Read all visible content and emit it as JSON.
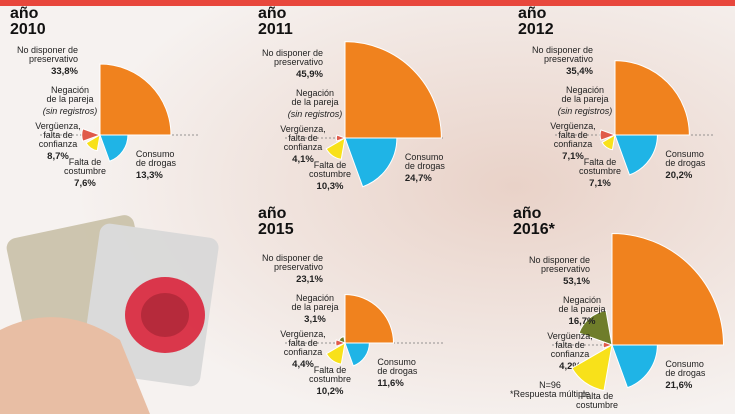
{
  "chart_data": [
    {
      "type": "polar-area",
      "title": [
        "año",
        "2010"
      ],
      "categories": [
        [
          "No disponer de",
          "preservativo"
        ],
        [
          "Negación",
          "de la pareja"
        ],
        [
          "Vergüenza,",
          "falta de",
          "confianza"
        ],
        [
          "Falta de",
          "costumbre"
        ],
        [
          "Consumo",
          "de drogas"
        ]
      ],
      "values": [
        33.8,
        null,
        8.7,
        7.6,
        13.3
      ],
      "value_labels": [
        "33,8%",
        "(sin registros)",
        "8,7%",
        "7,6%",
        "13,3%"
      ],
      "colors": [
        "#f0821e",
        "#6f7d2a",
        "#e05a4a",
        "#f8e11a",
        "#1fb4e6"
      ]
    },
    {
      "type": "polar-area",
      "title": [
        "año",
        "2011"
      ],
      "categories": [
        [
          "No disponer de",
          "preservativo"
        ],
        [
          "Negación",
          "de la pareja"
        ],
        [
          "Vergüenza,",
          "falta de",
          "confianza"
        ],
        [
          "Falta de",
          "costumbre"
        ],
        [
          "Consumo",
          "de drogas"
        ]
      ],
      "values": [
        45.9,
        null,
        4.1,
        10.3,
        24.7
      ],
      "value_labels": [
        "45,9%",
        "(sin registros)",
        "4,1%",
        "10,3%",
        "24,7%"
      ],
      "colors": [
        "#f0821e",
        "#6f7d2a",
        "#e05a4a",
        "#f8e11a",
        "#1fb4e6"
      ]
    },
    {
      "type": "polar-area",
      "title": [
        "año",
        "2012"
      ],
      "categories": [
        [
          "No disponer de",
          "preservativo"
        ],
        [
          "Negación",
          "de la pareja"
        ],
        [
          "Vergüenza,",
          "falta de",
          "confianza"
        ],
        [
          "Falta de",
          "costumbre"
        ],
        [
          "Consumo",
          "de drogas"
        ]
      ],
      "values": [
        35.4,
        null,
        7.1,
        7.1,
        20.2
      ],
      "value_labels": [
        "35,4%",
        "(sin registros)",
        "7,1%",
        "7,1%",
        "20,2%"
      ],
      "colors": [
        "#f0821e",
        "#6f7d2a",
        "#e05a4a",
        "#f8e11a",
        "#1fb4e6"
      ]
    },
    {
      "type": "polar-area",
      "title": [
        "año",
        "2015"
      ],
      "categories": [
        [
          "No disponer de",
          "preservativo"
        ],
        [
          "Negación",
          "de la pareja"
        ],
        [
          "Vergüenza,",
          "falta de",
          "confianza"
        ],
        [
          "Falta de",
          "costumbre"
        ],
        [
          "Consumo",
          "de drogas"
        ]
      ],
      "values": [
        23.1,
        3.1,
        4.4,
        10.2,
        11.6
      ],
      "value_labels": [
        "23,1%",
        "3,1%",
        "4,4%",
        "10,2%",
        "11,6%"
      ],
      "colors": [
        "#f0821e",
        "#6f7d2a",
        "#e05a4a",
        "#f8e11a",
        "#1fb4e6"
      ]
    },
    {
      "type": "polar-area",
      "title": [
        "año",
        "2016*"
      ],
      "categories": [
        [
          "No disponer de",
          "preservativo"
        ],
        [
          "Negación",
          "de la pareja"
        ],
        [
          "Vergüenza,",
          "falta de",
          "confianza"
        ],
        [
          "Falta de",
          "costumbre"
        ],
        [
          "Consumo",
          "de drogas"
        ]
      ],
      "values": [
        53.1,
        16.7,
        4.2,
        22,
        21.6
      ],
      "value_labels": [
        "53,1%",
        "16,7%",
        "4,2%",
        null,
        "21,6%"
      ],
      "colors": [
        "#f0821e",
        "#6f7d2a",
        "#e05a4a",
        "#f8e11a",
        "#1fb4e6"
      ],
      "note": [
        "N=96",
        "*Respuesta múltiple"
      ]
    }
  ]
}
